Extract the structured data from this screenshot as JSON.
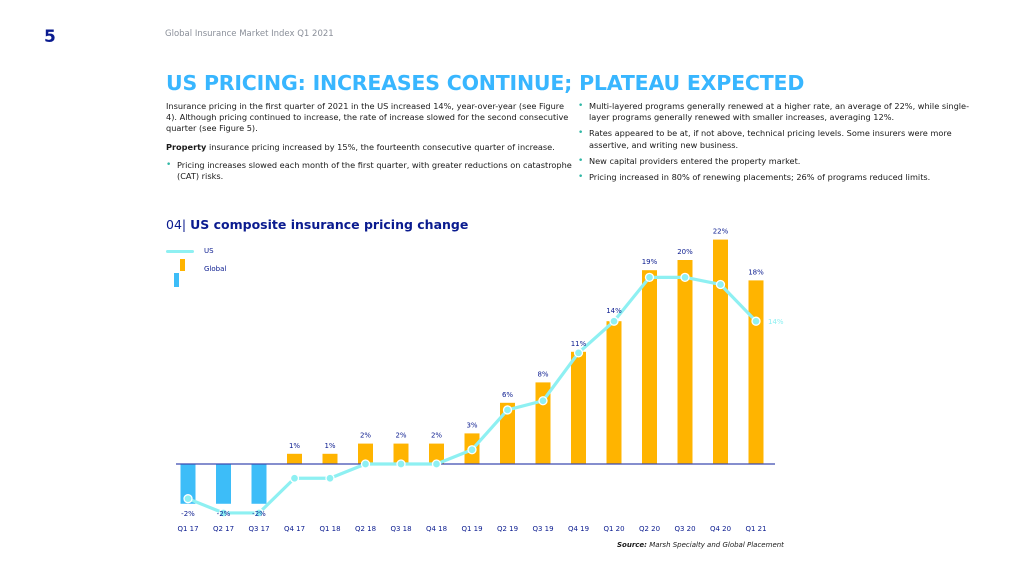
{
  "header": {
    "page_number": "5",
    "document_title": "Global Insurance Market Index Q1 2021",
    "headline": "US PRICING: INCREASES CONTINUE; PLATEAU EXPECTED"
  },
  "body": {
    "left": {
      "paragraph1": "Insurance pricing in the first quarter of 2021 in the US increased 14%, year-over-year (see Figure 4). Although pricing continued to increase, the rate of increase slowed for the second consecutive quarter (see Figure 5).",
      "paragraph2_bold": "Property",
      "paragraph2_rest": " insurance pricing increased by 15%, the fourteenth consecutive quarter of increase.",
      "bullets": [
        "Pricing increases slowed each month of the first quarter, with greater reductions on catastrophe (CAT) risks."
      ]
    },
    "right": {
      "bullets": [
        "Multi-layered programs generally renewed at a higher rate, an average of 22%, while single-layer programs generally renewed with smaller increases, averaging 12%.",
        "Rates appeared to be at, if not above, technical pricing levels. Some insurers were more assertive, and writing new business.",
        "New capital providers entered the property market.",
        "Pricing increased in 80% of renewing placements; 26% of programs reduced limits."
      ]
    }
  },
  "figure": {
    "number": "04|",
    "title": "US composite insurance pricing change",
    "source_label": "Source:",
    "source_text": " Marsh Specialty and Global Placement"
  },
  "chart_data": {
    "type": "bar",
    "title": "US composite insurance pricing change",
    "xlabel": "",
    "ylabel": "",
    "grid": false,
    "legend_position": "top-left",
    "categories": [
      "Q1 17",
      "Q2 17",
      "Q3 17",
      "Q4 17",
      "Q1 18",
      "Q2 18",
      "Q3 18",
      "Q4 18",
      "Q1 19",
      "Q2 19",
      "Q3 19",
      "Q4 19",
      "Q1 20",
      "Q2 20",
      "Q3 20",
      "Q4 20",
      "Q1 21"
    ],
    "series": [
      {
        "name": "Global",
        "kind": "bar",
        "values": [
          -2,
          -2,
          -2,
          1,
          1,
          2,
          2,
          2,
          3,
          6,
          8,
          11,
          14,
          19,
          20,
          22,
          18
        ],
        "labels": [
          "-2%",
          "-2%",
          "-2%",
          "1%",
          "1%",
          "2%",
          "2%",
          "2%",
          "3%",
          "6%",
          "8%",
          "11%",
          "14%",
          "19%",
          "20%",
          "22%",
          "18%"
        ],
        "color_positive": "#ffb400",
        "color_negative": "#3dbdf8"
      },
      {
        "name": "US",
        "kind": "line",
        "values": [
          -3.4,
          -4.8,
          -4.8,
          -1.4,
          -1.4,
          0,
          0,
          0,
          1.4,
          5.3,
          6.2,
          10.9,
          14,
          18.3,
          18.3,
          17.6,
          14
        ],
        "end_label": "14%",
        "color": "#8ef0f2"
      }
    ],
    "ylim": [
      -5,
      22
    ],
    "axis_color": "#3c4bb0"
  }
}
